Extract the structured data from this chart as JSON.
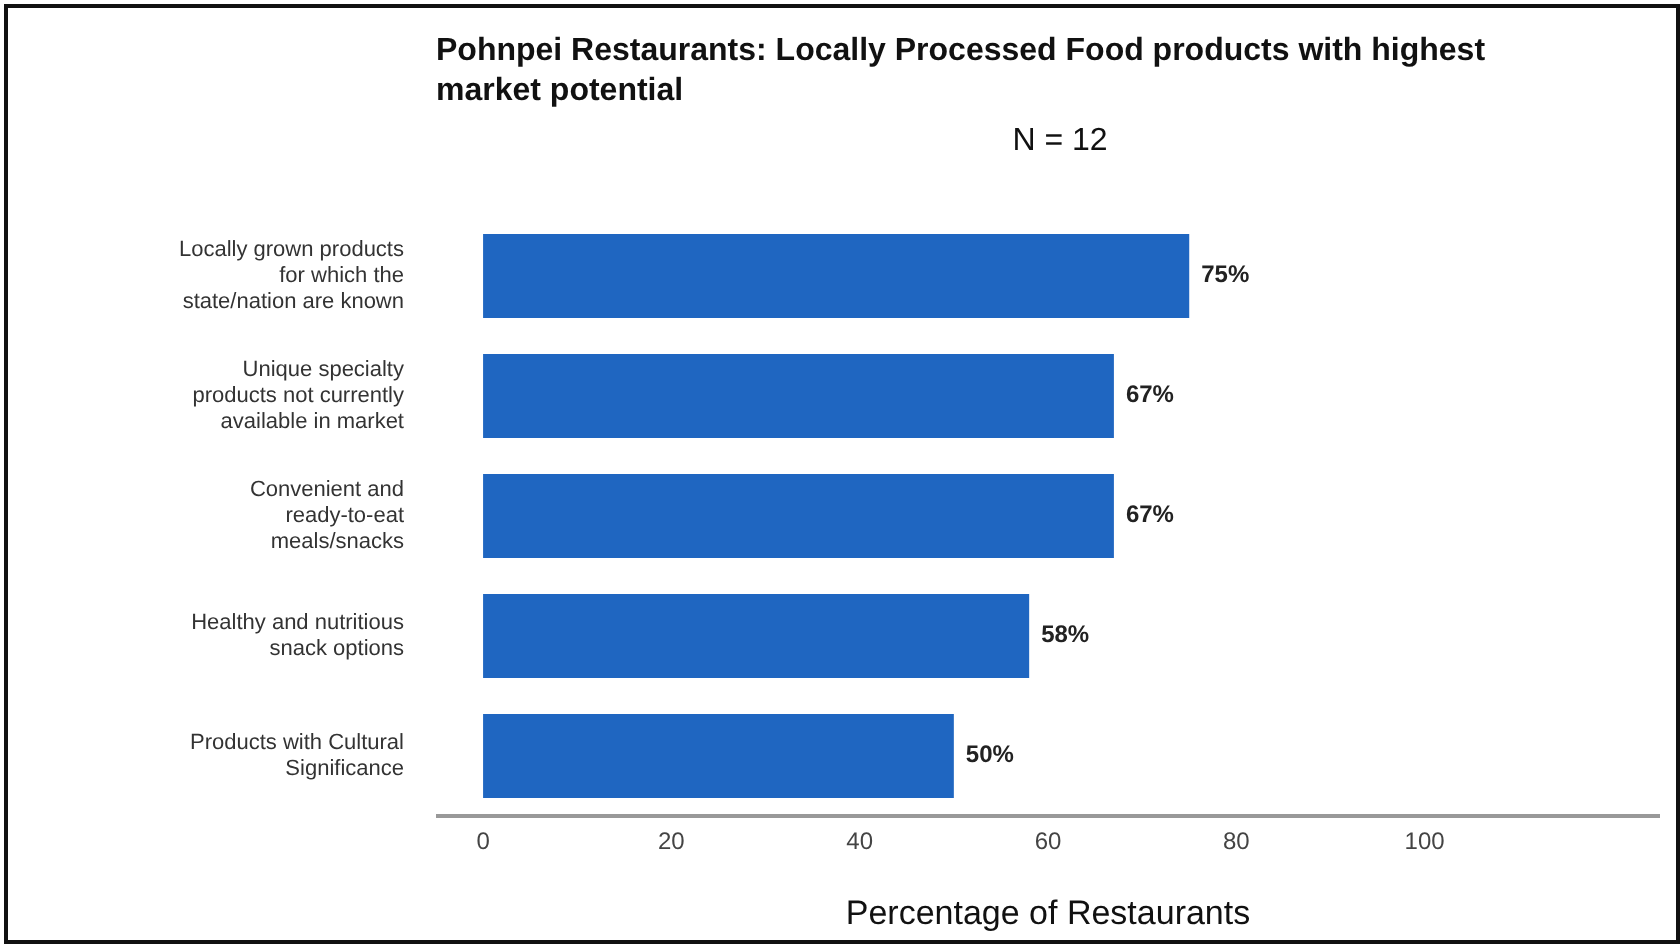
{
  "chart_data": {
    "type": "bar",
    "orientation": "horizontal",
    "title": "Pohnpei Restaurants: Locally Processed Food products with highest market potential",
    "subtitle": "N = 12",
    "xlabel": "Percentage of Restaurants",
    "categories": [
      "Locally grown products for which the state/nation are known",
      "Unique specialty products not currently available in market",
      "Convenient and ready-to-eat meals/snacks",
      "Healthy and nutritious snack options",
      "Products with Cultural Significance"
    ],
    "values": [
      75,
      67,
      67,
      58,
      50
    ],
    "value_labels": [
      "75%",
      "67%",
      "67%",
      "58%",
      "50%"
    ],
    "color": "#1f66c1",
    "xlim": [
      -5,
      125
    ],
    "xticks": [
      0,
      20,
      40,
      60,
      80,
      100
    ],
    "grid": false
  }
}
